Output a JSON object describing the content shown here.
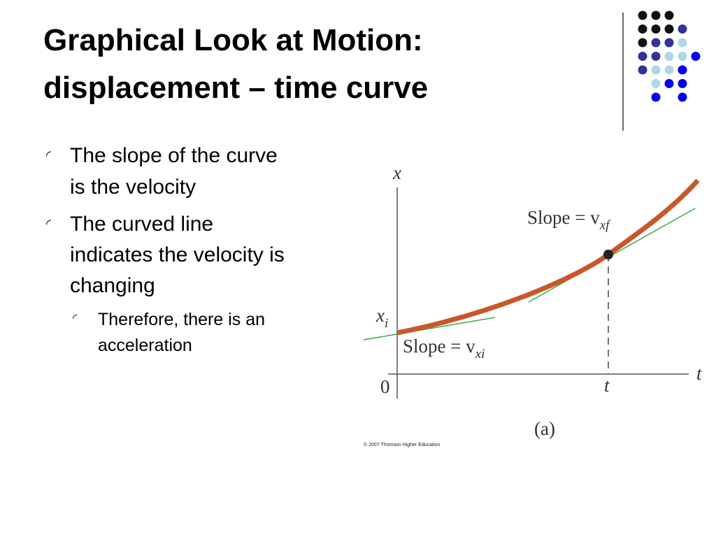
{
  "title": {
    "lines": [
      "Graphical Look at Motion:",
      "displacement – time curve"
    ]
  },
  "bullets": [
    {
      "lines": [
        "The slope of the curve",
        "is the velocity"
      ]
    },
    {
      "lines": [
        "The curved line",
        "indicates the velocity is",
        "changing"
      ],
      "sub_bullets": [
        {
          "lines": [
            "Therefore, there is an",
            "acceleration"
          ]
        }
      ]
    }
  ],
  "figure": {
    "y_axis_label": "x",
    "x_axis_label": "t",
    "origin_label": "0",
    "initial_position_label": {
      "main": "x",
      "sub": "i"
    },
    "time_label": "t",
    "final_slope_label": {
      "main": "Slope = v",
      "sub": "xf"
    },
    "initial_slope_label": {
      "main": "Slope = v",
      "sub": "xi"
    },
    "caption": "(a)",
    "credit": "© 2007 Thomson Higher Education"
  }
}
